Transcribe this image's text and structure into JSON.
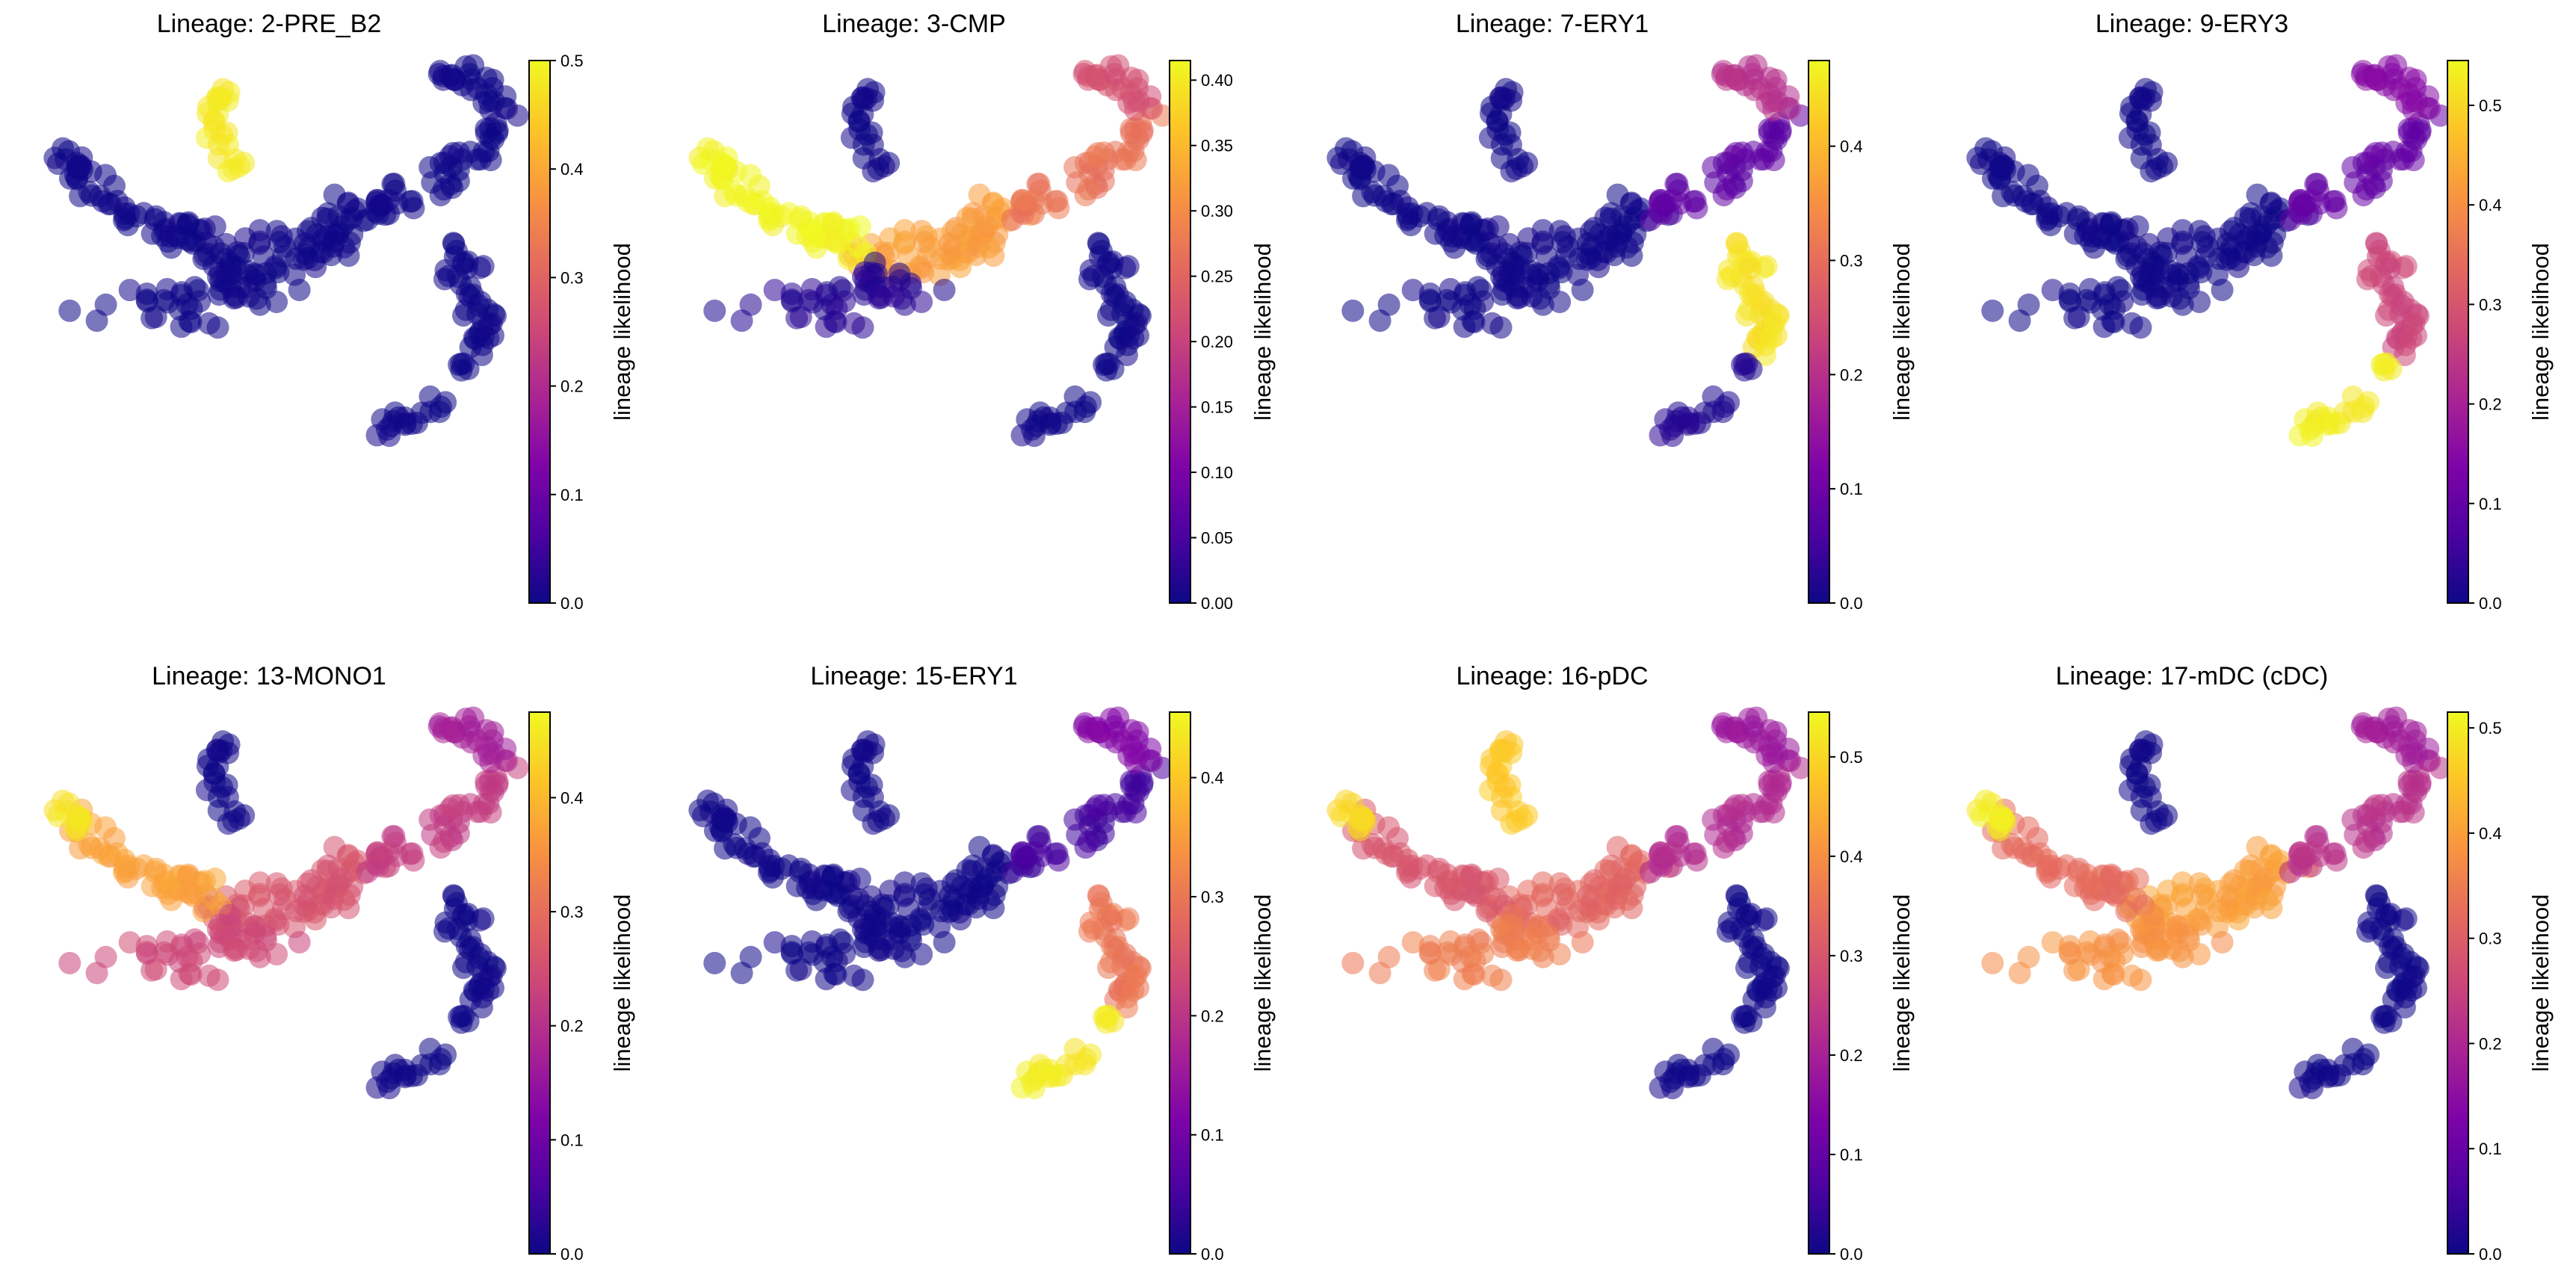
{
  "chart_data": [
    {
      "type": "scatter",
      "title": "Lineage: 2-PRE_B2",
      "colorbar_label": "lineage likelihood",
      "colormap": "plasma",
      "clim": [
        0,
        0.5
      ],
      "colorbar_ticks": [
        "0.0",
        "0.1",
        "0.2",
        "0.3",
        "0.4",
        "0.5"
      ],
      "colorbar_tick_values": [
        0,
        0.1,
        0.2,
        0.3,
        0.4,
        0.5
      ],
      "regions": {
        "trunk": 0.0,
        "left_arm": 0.0,
        "left_tip": 0.0,
        "legs": 0.0,
        "right_arm": 0.0,
        "right_tip": 0.0,
        "top_island": 0.48,
        "bottom_island": 0.0,
        "bottom_tip": 0.0
      }
    },
    {
      "type": "scatter",
      "title": "Lineage: 3-CMP",
      "colorbar_label": "lineage likelihood",
      "colormap": "plasma",
      "clim": [
        0,
        0.415
      ],
      "colorbar_ticks": [
        "0.00",
        "0.05",
        "0.10",
        "0.15",
        "0.20",
        "0.25",
        "0.30",
        "0.35",
        "0.40"
      ],
      "colorbar_tick_values": [
        0,
        0.05,
        0.1,
        0.15,
        0.2,
        0.25,
        0.3,
        0.35,
        0.4
      ],
      "regions": {
        "trunk": 0.32,
        "left_arm": 0.41,
        "left_tip": 0.41,
        "legs": 0.02,
        "right_arm": 0.27,
        "right_tip": 0.22,
        "top_island": 0.0,
        "bottom_island": 0.0,
        "bottom_tip": 0.0
      }
    },
    {
      "type": "scatter",
      "title": "Lineage: 7-ERY1",
      "colorbar_label": "lineage likelihood",
      "colormap": "plasma",
      "clim": [
        0,
        0.475
      ],
      "colorbar_ticks": [
        "0.0",
        "0.1",
        "0.2",
        "0.3",
        "0.4"
      ],
      "colorbar_tick_values": [
        0,
        0.1,
        0.2,
        0.3,
        0.4
      ],
      "regions": {
        "trunk": 0.0,
        "left_arm": 0.0,
        "left_tip": 0.0,
        "legs": 0.0,
        "right_arm": 0.08,
        "right_tip": 0.2,
        "top_island": 0.0,
        "bottom_island": 0.45,
        "bottom_tip": 0.02
      }
    },
    {
      "type": "scatter",
      "title": "Lineage: 9-ERY3",
      "colorbar_label": "lineage likelihood",
      "colormap": "plasma",
      "clim": [
        0,
        0.545
      ],
      "colorbar_ticks": [
        "0.0",
        "0.1",
        "0.2",
        "0.3",
        "0.4",
        "0.5"
      ],
      "colorbar_tick_values": [
        0,
        0.1,
        0.2,
        0.3,
        0.4,
        0.5
      ],
      "regions": {
        "trunk": 0.0,
        "left_arm": 0.0,
        "left_tip": 0.0,
        "legs": 0.0,
        "right_arm": 0.1,
        "right_tip": 0.15,
        "top_island": 0.0,
        "bottom_island": 0.27,
        "bottom_tip": 0.53
      }
    },
    {
      "type": "scatter",
      "title": "Lineage: 13-MONO1",
      "colorbar_label": "lineage likelihood",
      "colormap": "plasma",
      "clim": [
        0,
        0.475
      ],
      "colorbar_ticks": [
        "0.0",
        "0.1",
        "0.2",
        "0.3",
        "0.4"
      ],
      "colorbar_tick_values": [
        0,
        0.1,
        0.2,
        0.3,
        0.4
      ],
      "regions": {
        "trunk": 0.26,
        "left_arm": 0.37,
        "left_tip": 0.45,
        "legs": 0.24,
        "right_arm": 0.22,
        "right_tip": 0.17,
        "top_island": 0.0,
        "bottom_island": 0.0,
        "bottom_tip": 0.0
      }
    },
    {
      "type": "scatter",
      "title": "Lineage: 15-ERY1",
      "colorbar_label": "lineage likelihood",
      "colormap": "plasma",
      "clim": [
        0,
        0.455
      ],
      "colorbar_ticks": [
        "0.0",
        "0.1",
        "0.2",
        "0.3",
        "0.4"
      ],
      "colorbar_tick_values": [
        0,
        0.1,
        0.2,
        0.3,
        0.4
      ],
      "regions": {
        "trunk": 0.0,
        "left_arm": 0.0,
        "left_tip": 0.0,
        "legs": 0.0,
        "right_arm": 0.05,
        "right_tip": 0.12,
        "top_island": 0.0,
        "bottom_island": 0.3,
        "bottom_tip": 0.44
      }
    },
    {
      "type": "scatter",
      "title": "Lineage: 16-pDC",
      "colorbar_label": "lineage likelihood",
      "colormap": "plasma",
      "clim": [
        0,
        0.545
      ],
      "colorbar_ticks": [
        "0.0",
        "0.1",
        "0.2",
        "0.3",
        "0.4",
        "0.5"
      ],
      "colorbar_tick_values": [
        0,
        0.1,
        0.2,
        0.3,
        0.4,
        0.5
      ],
      "regions": {
        "trunk": 0.33,
        "left_arm": 0.3,
        "left_tip": 0.5,
        "legs": 0.37,
        "right_arm": 0.22,
        "right_tip": 0.18,
        "top_island": 0.48,
        "bottom_island": 0.0,
        "bottom_tip": 0.0
      }
    },
    {
      "type": "scatter",
      "title": "Lineage: 17-mDC (cDC)",
      "colorbar_label": "lineage likelihood",
      "colormap": "plasma",
      "clim": [
        0,
        0.515
      ],
      "colorbar_ticks": [
        "0.0",
        "0.1",
        "0.2",
        "0.3",
        "0.4",
        "0.5"
      ],
      "colorbar_tick_values": [
        0,
        0.1,
        0.2,
        0.3,
        0.4,
        0.5
      ],
      "regions": {
        "trunk": 0.4,
        "left_arm": 0.32,
        "left_tip": 0.5,
        "legs": 0.38,
        "right_arm": 0.22,
        "right_tip": 0.18,
        "top_island": 0.0,
        "bottom_island": 0.0,
        "bottom_tip": 0.0
      }
    }
  ]
}
